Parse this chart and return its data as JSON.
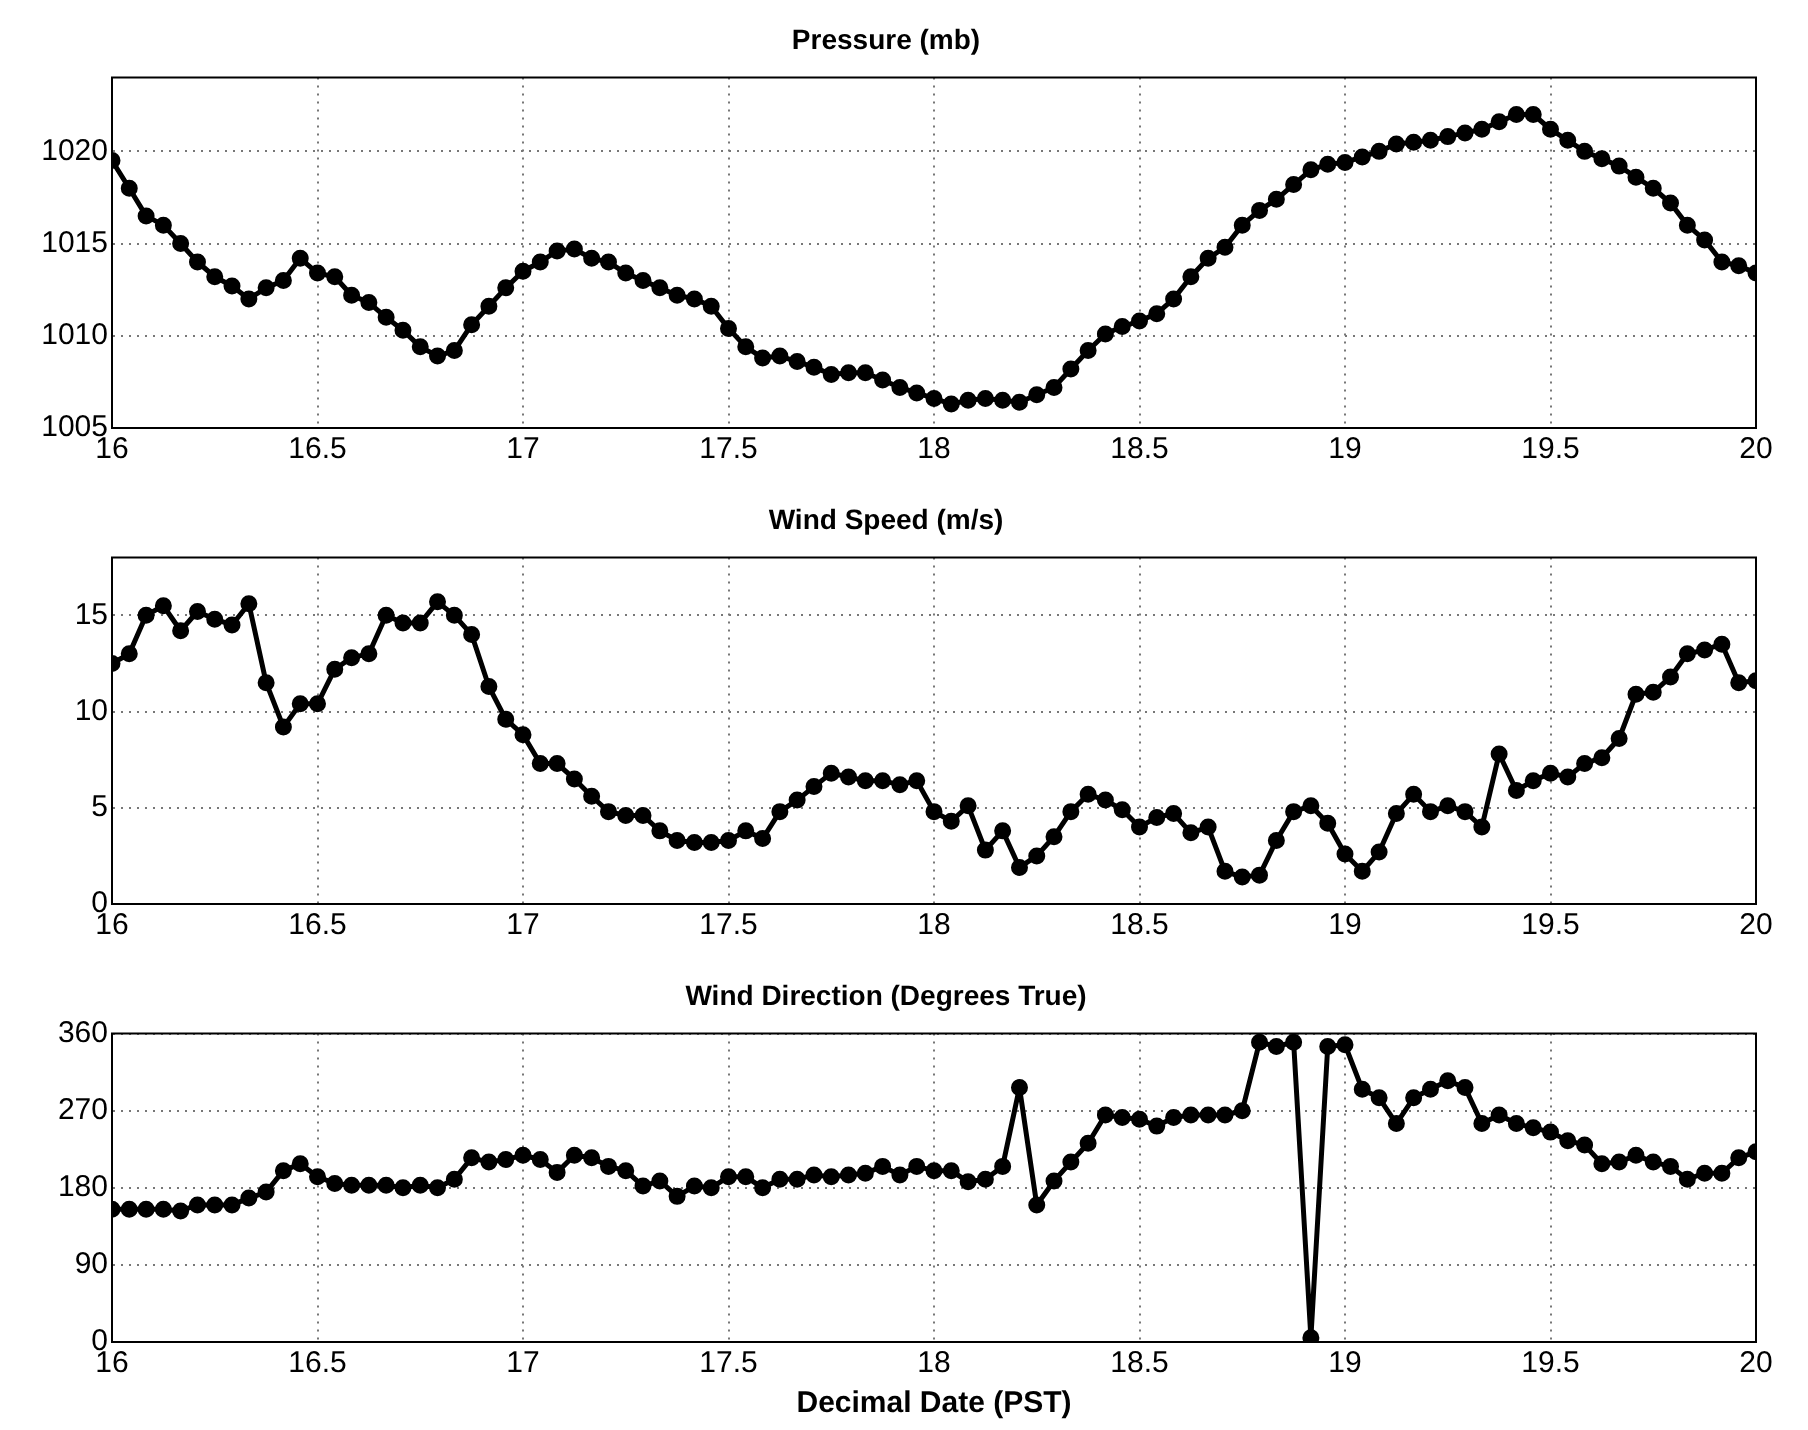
{
  "chart_data": [
    {
      "type": "line",
      "title": "Pressure (mb)",
      "marker": "circle",
      "grid": true,
      "color": "#000000",
      "x": [
        16,
        16.042,
        16.083,
        16.125,
        16.167,
        16.208,
        16.25,
        16.292,
        16.333,
        16.375,
        16.417,
        16.458,
        16.5,
        16.542,
        16.583,
        16.625,
        16.667,
        16.708,
        16.75,
        16.792,
        16.833,
        16.875,
        16.917,
        16.958,
        17,
        17.042,
        17.083,
        17.125,
        17.167,
        17.208,
        17.25,
        17.292,
        17.333,
        17.375,
        17.417,
        17.458,
        17.5,
        17.542,
        17.583,
        17.625,
        17.667,
        17.708,
        17.75,
        17.792,
        17.833,
        17.875,
        17.917,
        17.958,
        18,
        18.042,
        18.083,
        18.125,
        18.167,
        18.208,
        18.25,
        18.292,
        18.333,
        18.375,
        18.417,
        18.458,
        18.5,
        18.542,
        18.583,
        18.625,
        18.667,
        18.708,
        18.75,
        18.792,
        18.833,
        18.875,
        18.917,
        18.958,
        19,
        19.042,
        19.083,
        19.125,
        19.167,
        19.208,
        19.25,
        19.292,
        19.333,
        19.375,
        19.417,
        19.458,
        19.5,
        19.542,
        19.583,
        19.625,
        19.667,
        19.708,
        19.75,
        19.792,
        19.833,
        19.875,
        19.917,
        19.958,
        20
      ],
      "values": [
        1019.5,
        1018,
        1016.5,
        1016,
        1015,
        1014,
        1013.2,
        1012.7,
        1012,
        1012.6,
        1013,
        1014.2,
        1013.4,
        1013.2,
        1012.2,
        1011.8,
        1011,
        1010.3,
        1009.4,
        1008.9,
        1009.2,
        1010.6,
        1011.6,
        1012.6,
        1013.5,
        1014,
        1014.6,
        1014.7,
        1014.2,
        1014,
        1013.4,
        1013,
        1012.6,
        1012.2,
        1012,
        1011.6,
        1010.4,
        1009.4,
        1008.8,
        1008.9,
        1008.6,
        1008.3,
        1007.9,
        1008,
        1008,
        1007.6,
        1007.2,
        1006.9,
        1006.6,
        1006.3,
        1006.5,
        1006.6,
        1006.5,
        1006.4,
        1006.8,
        1007.2,
        1008.2,
        1009.2,
        1010.1,
        1010.5,
        1010.8,
        1011.2,
        1012,
        1013.2,
        1014.2,
        1014.8,
        1016,
        1016.8,
        1017.4,
        1018.2,
        1019,
        1019.3,
        1019.4,
        1019.7,
        1020,
        1020.4,
        1020.5,
        1020.6,
        1020.8,
        1021,
        1021.2,
        1021.6,
        1022,
        1022,
        1021.2,
        1020.6,
        1020,
        1019.6,
        1019.2,
        1018.6,
        1018,
        1017.2,
        1016,
        1015.2,
        1014,
        1013.8,
        1013.4
      ],
      "xlim": [
        16,
        20
      ],
      "xticks": [
        16,
        16.5,
        17,
        17.5,
        18,
        18.5,
        19,
        19.5,
        20
      ],
      "ylim": [
        1005,
        1024
      ],
      "yticks": [
        1005,
        1010,
        1015,
        1020
      ]
    },
    {
      "type": "line",
      "title": "Wind Speed (m/s)",
      "marker": "circle",
      "grid": true,
      "color": "#000000",
      "x": [
        16,
        16.042,
        16.083,
        16.125,
        16.167,
        16.208,
        16.25,
        16.292,
        16.333,
        16.375,
        16.417,
        16.458,
        16.5,
        16.542,
        16.583,
        16.625,
        16.667,
        16.708,
        16.75,
        16.792,
        16.833,
        16.875,
        16.917,
        16.958,
        17,
        17.042,
        17.083,
        17.125,
        17.167,
        17.208,
        17.25,
        17.292,
        17.333,
        17.375,
        17.417,
        17.458,
        17.5,
        17.542,
        17.583,
        17.625,
        17.667,
        17.708,
        17.75,
        17.792,
        17.833,
        17.875,
        17.917,
        17.958,
        18,
        18.042,
        18.083,
        18.125,
        18.167,
        18.208,
        18.25,
        18.292,
        18.333,
        18.375,
        18.417,
        18.458,
        18.5,
        18.542,
        18.583,
        18.625,
        18.667,
        18.708,
        18.75,
        18.792,
        18.833,
        18.875,
        18.917,
        18.958,
        19,
        19.042,
        19.083,
        19.125,
        19.167,
        19.208,
        19.25,
        19.292,
        19.333,
        19.375,
        19.417,
        19.458,
        19.5,
        19.542,
        19.583,
        19.625,
        19.667,
        19.708,
        19.75,
        19.792,
        19.833,
        19.875,
        19.917,
        19.958,
        20
      ],
      "values": [
        12.5,
        13,
        15,
        15.5,
        14.2,
        15.2,
        14.8,
        14.5,
        15.6,
        11.5,
        9.2,
        10.4,
        10.4,
        12.2,
        12.8,
        13,
        15,
        14.6,
        14.6,
        15.7,
        15,
        14,
        11.3,
        9.6,
        8.8,
        7.3,
        7.3,
        6.5,
        5.6,
        4.8,
        4.6,
        4.6,
        3.8,
        3.3,
        3.2,
        3.2,
        3.3,
        3.8,
        3.4,
        4.8,
        5.4,
        6.1,
        6.8,
        6.6,
        6.4,
        6.4,
        6.2,
        6.4,
        4.8,
        4.3,
        5.1,
        2.8,
        3.8,
        1.9,
        2.5,
        3.5,
        4.8,
        5.7,
        5.4,
        4.9,
        4,
        4.5,
        4.7,
        3.7,
        4,
        1.7,
        1.4,
        1.5,
        3.3,
        4.8,
        5.1,
        4.2,
        2.6,
        1.7,
        2.7,
        4.7,
        5.7,
        4.8,
        5.1,
        4.8,
        4,
        7.8,
        5.9,
        6.4,
        6.8,
        6.6,
        7.3,
        7.6,
        8.6,
        10.9,
        11,
        11.8,
        13,
        13.2,
        13.5,
        11.5,
        11.6
      ],
      "xlim": [
        16,
        20
      ],
      "xticks": [
        16,
        16.5,
        17,
        17.5,
        18,
        18.5,
        19,
        19.5,
        20
      ],
      "ylim": [
        0,
        18
      ],
      "yticks": [
        0,
        5,
        10,
        15
      ]
    },
    {
      "type": "line",
      "title": "Wind Direction (Degrees True)",
      "xlabel": "Decimal Date (PST)",
      "marker": "circle",
      "grid": true,
      "color": "#000000",
      "x": [
        16,
        16.042,
        16.083,
        16.125,
        16.167,
        16.208,
        16.25,
        16.292,
        16.333,
        16.375,
        16.417,
        16.458,
        16.5,
        16.542,
        16.583,
        16.625,
        16.667,
        16.708,
        16.75,
        16.792,
        16.833,
        16.875,
        16.917,
        16.958,
        17,
        17.042,
        17.083,
        17.125,
        17.167,
        17.208,
        17.25,
        17.292,
        17.333,
        17.375,
        17.417,
        17.458,
        17.5,
        17.542,
        17.583,
        17.625,
        17.667,
        17.708,
        17.75,
        17.792,
        17.833,
        17.875,
        17.917,
        17.958,
        18,
        18.042,
        18.083,
        18.125,
        18.167,
        18.208,
        18.25,
        18.292,
        18.333,
        18.375,
        18.417,
        18.458,
        18.5,
        18.542,
        18.583,
        18.625,
        18.667,
        18.708,
        18.75,
        18.792,
        18.833,
        18.875,
        18.917,
        18.958,
        19,
        19.042,
        19.083,
        19.125,
        19.167,
        19.208,
        19.25,
        19.292,
        19.333,
        19.375,
        19.417,
        19.458,
        19.5,
        19.542,
        19.583,
        19.625,
        19.667,
        19.708,
        19.75,
        19.792,
        19.833,
        19.875,
        19.917,
        19.958,
        20
      ],
      "values": [
        155,
        155,
        155,
        155,
        153,
        160,
        160,
        160,
        168,
        175,
        200,
        208,
        193,
        185,
        183,
        183,
        183,
        180,
        183,
        180,
        190,
        215,
        210,
        213,
        218,
        213,
        198,
        218,
        215,
        205,
        200,
        182,
        188,
        170,
        182,
        180,
        193,
        193,
        180,
        190,
        190,
        195,
        193,
        195,
        197,
        205,
        195,
        205,
        200,
        200,
        187,
        190,
        205,
        297,
        160,
        188,
        210,
        232,
        265,
        262,
        260,
        252,
        262,
        265,
        265,
        265,
        270,
        350,
        345,
        350,
        5,
        345,
        347,
        295,
        285,
        255,
        285,
        295,
        305,
        297,
        255,
        265,
        255,
        250,
        245,
        235,
        230,
        208,
        210,
        218,
        210,
        205,
        190,
        197,
        197,
        215,
        222
      ],
      "xlim": [
        16,
        20
      ],
      "xticks": [
        16,
        16.5,
        17,
        17.5,
        18,
        18.5,
        19,
        19.5,
        20
      ],
      "ylim": [
        0,
        360
      ],
      "yticks": [
        0,
        90,
        180,
        270,
        360
      ]
    }
  ]
}
